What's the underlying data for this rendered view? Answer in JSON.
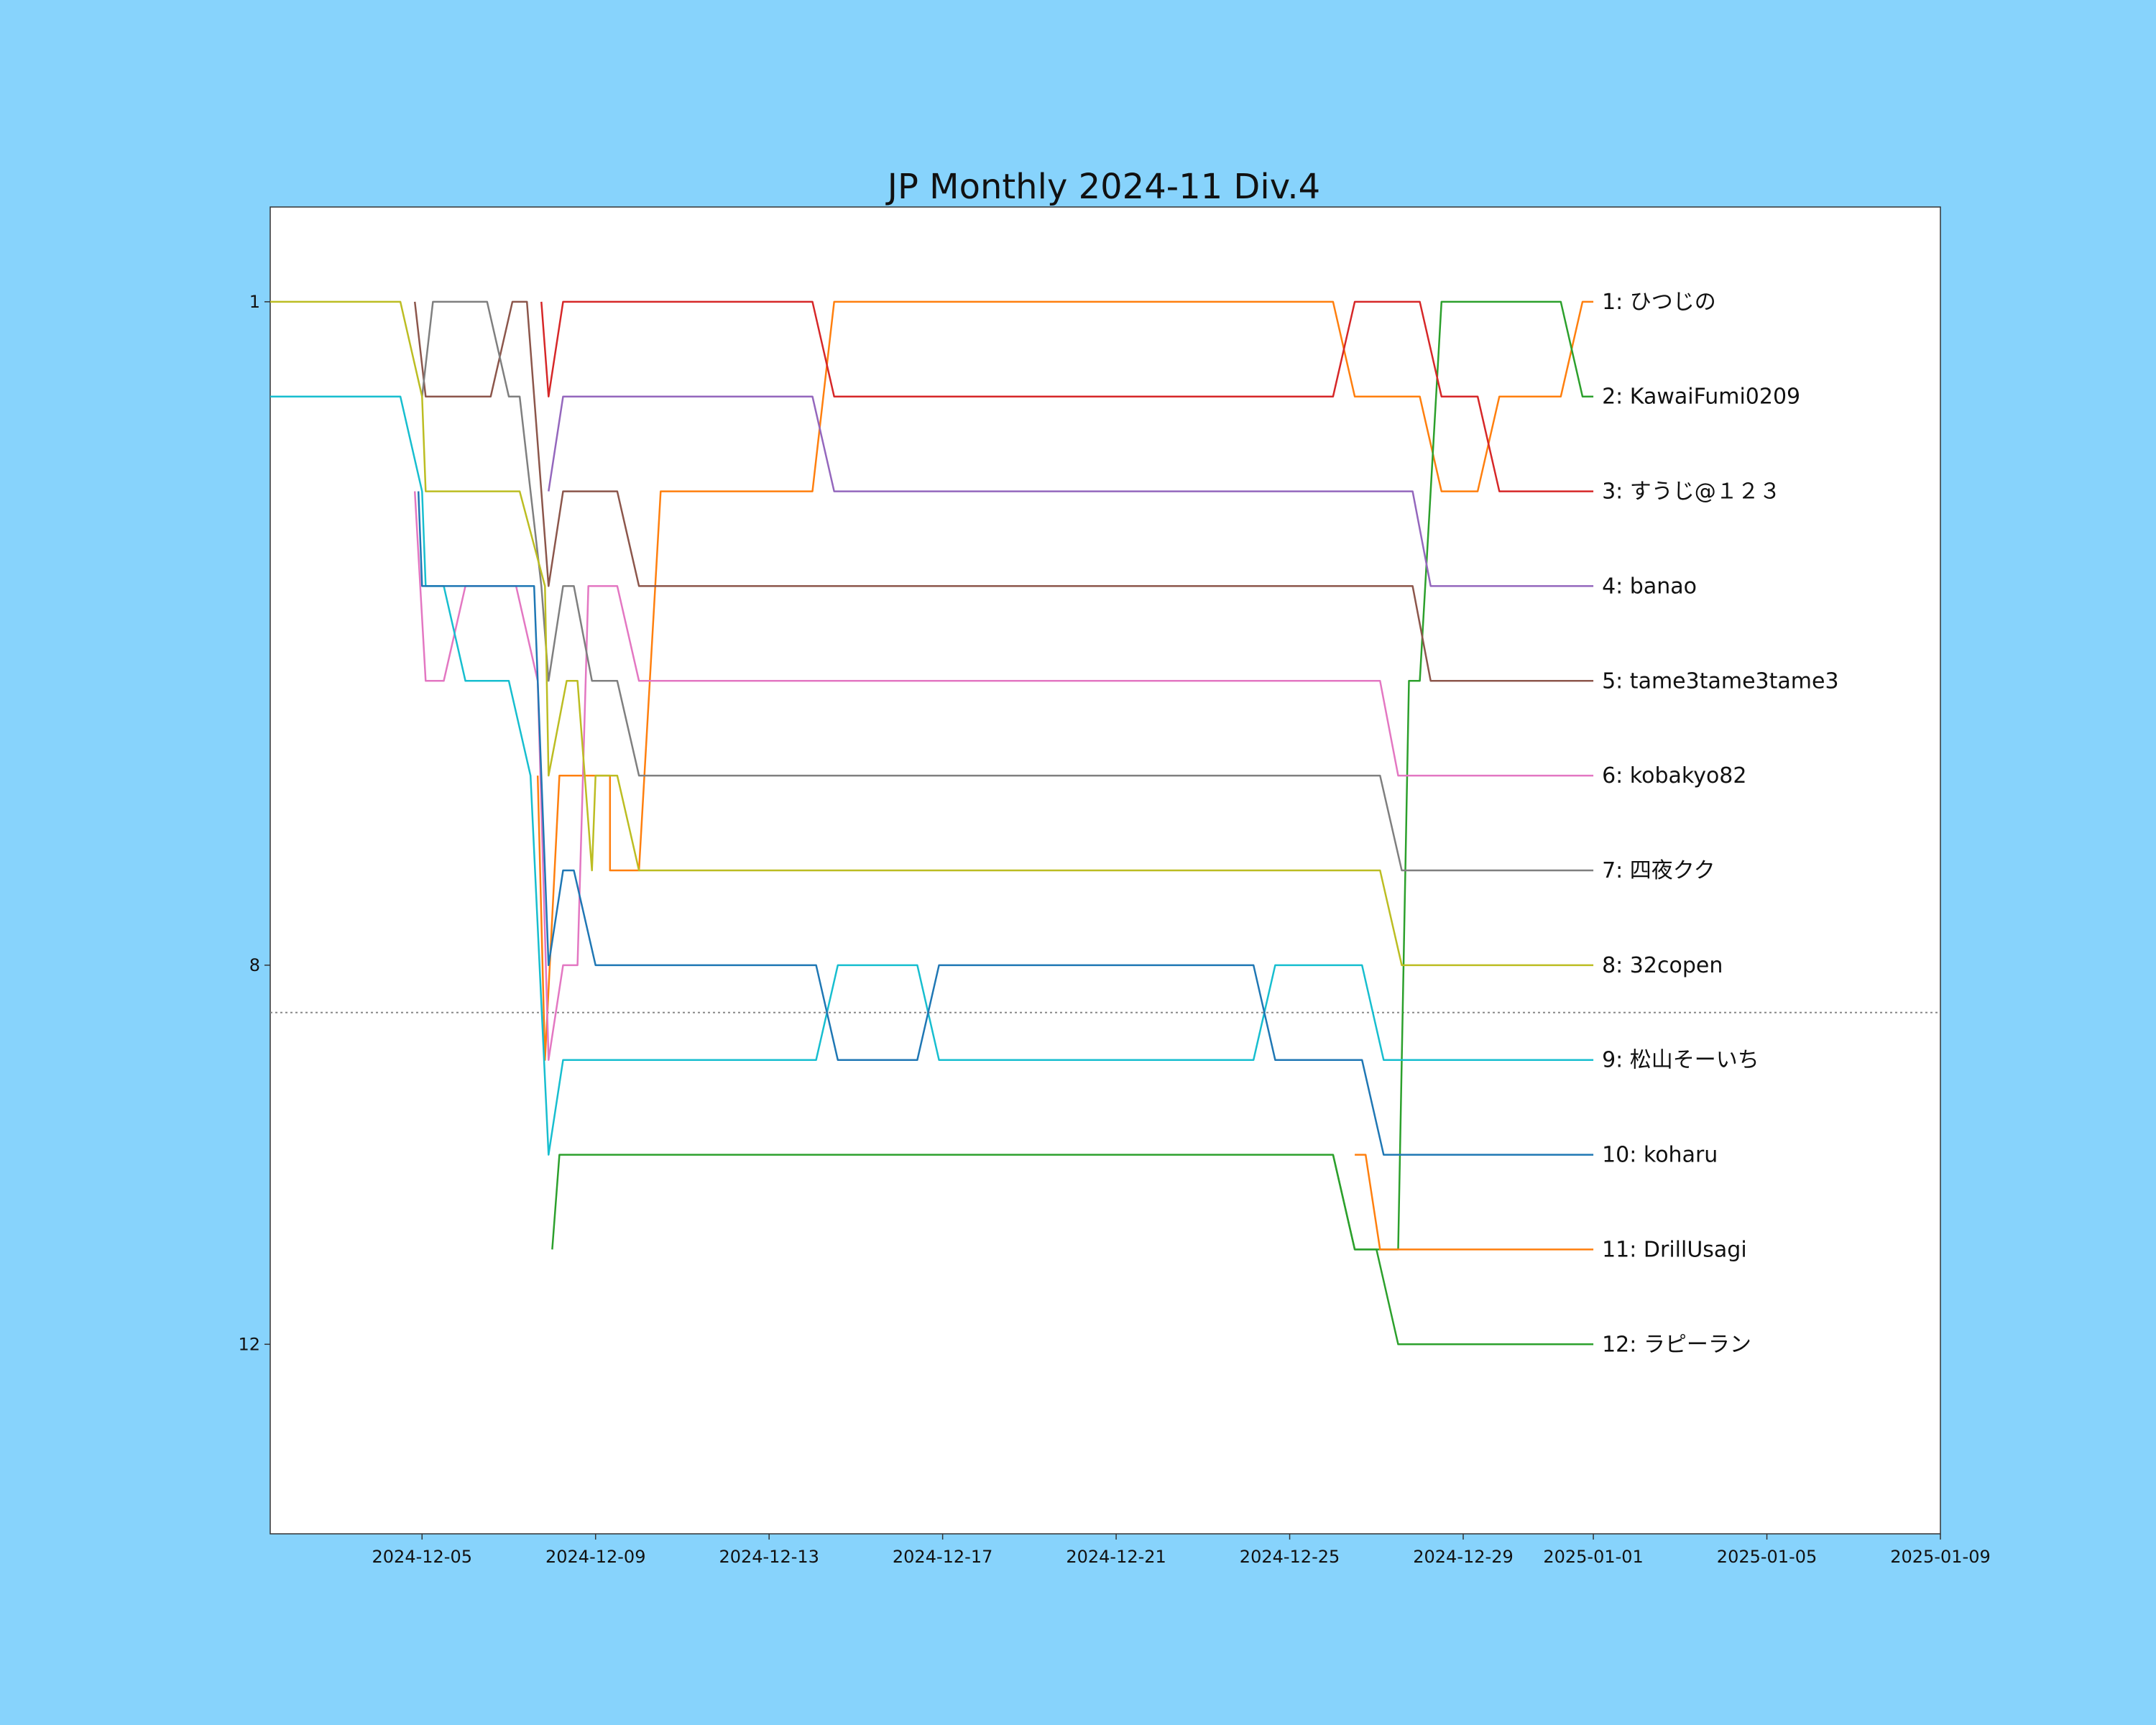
{
  "chart_data": {
    "type": "line",
    "title": "JP Monthly 2024-11 Div.4",
    "xlabel": "",
    "ylabel": "",
    "x_axis": {
      "type": "date",
      "range": [
        "2024-12-01T12:00",
        "2025-01-09T00:00"
      ],
      "tick_labels": [
        "2024-12-05",
        "2024-12-09",
        "2024-12-13",
        "2024-12-17",
        "2024-12-21",
        "2024-12-25",
        "2024-12-29",
        "2025-01-01",
        "2025-01-05",
        "2025-01-09"
      ]
    },
    "y_axis": {
      "range": [
        14,
        0
      ],
      "inverted": true,
      "tick_labels": [
        "1",
        "8",
        "12"
      ]
    },
    "threshold_line": {
      "value": 8.5,
      "style": "dotted",
      "color": "#888888"
    },
    "grid": false,
    "legend": "none",
    "series": [
      {
        "name": "1: ひつじの",
        "color": "#ff7f0e",
        "points": [
          [
            "2024-12-07T16:00",
            6
          ],
          [
            "2024-12-07T20:00",
            9
          ],
          [
            "2024-12-08T04:00",
            6
          ],
          [
            "2024-12-09T08:00",
            6
          ],
          [
            "2024-12-09T08:00",
            7
          ],
          [
            "2024-12-10T00:00",
            7
          ],
          [
            "2024-12-10T12:00",
            3
          ],
          [
            "2024-12-14T00:00",
            3
          ],
          [
            "2024-12-14T12:00",
            1
          ],
          [
            "2024-12-26T00:00",
            1
          ],
          [
            "2024-12-26T12:00",
            2
          ],
          [
            "2024-12-28T00:00",
            2
          ],
          [
            "2024-12-28T12:00",
            3
          ],
          [
            "2024-12-29T08:00",
            3
          ],
          [
            "2024-12-29T20:00",
            2
          ],
          [
            "2024-12-31T06:00",
            2
          ],
          [
            "2024-12-31T18:00",
            1
          ],
          [
            "2025-01-01T00:00",
            1
          ]
        ]
      },
      {
        "name": "2: KawaiFumi0209",
        "color": "#2ca02c",
        "points": [
          [
            "2024-12-08T00:00",
            11
          ],
          [
            "2024-12-08T04:00",
            10
          ],
          [
            "2024-12-26T00:00",
            10
          ],
          [
            "2024-12-26T12:00",
            11
          ],
          [
            "2024-12-27T00:00",
            11
          ],
          [
            "2024-12-27T12:00",
            11
          ],
          [
            "2024-12-27T18:00",
            5
          ],
          [
            "2024-12-28T00:00",
            5
          ],
          [
            "2024-12-28T12:00",
            1
          ],
          [
            "2024-12-31T06:00",
            1
          ],
          [
            "2024-12-31T18:00",
            2
          ],
          [
            "2025-01-01T00:00",
            2
          ]
        ]
      },
      {
        "name": "3: すうじ@１２３",
        "color": "#d62728",
        "points": [
          [
            "2024-12-07T18:00",
            1
          ],
          [
            "2024-12-07T22:00",
            2
          ],
          [
            "2024-12-08T06:00",
            1
          ],
          [
            "2024-12-14T00:00",
            1
          ],
          [
            "2024-12-14T12:00",
            2
          ],
          [
            "2024-12-26T00:00",
            2
          ],
          [
            "2024-12-26T12:00",
            1
          ],
          [
            "2024-12-28T00:00",
            1
          ],
          [
            "2024-12-28T12:00",
            2
          ],
          [
            "2024-12-29T08:00",
            2
          ],
          [
            "2024-12-29T20:00",
            3
          ],
          [
            "2025-01-01T00:00",
            3
          ]
        ]
      },
      {
        "name": "4: banao",
        "color": "#9467bd",
        "points": [
          [
            "2024-12-07T22:00",
            3
          ],
          [
            "2024-12-08T06:00",
            2
          ],
          [
            "2024-12-14T00:00",
            2
          ],
          [
            "2024-12-14T12:00",
            3
          ],
          [
            "2024-12-27T20:00",
            3
          ],
          [
            "2024-12-28T06:00",
            4
          ],
          [
            "2025-01-01T00:00",
            4
          ]
        ]
      },
      {
        "name": "5: tame3tame3tame3",
        "color": "#8c564b",
        "points": [
          [
            "2024-12-04T20:00",
            1
          ],
          [
            "2024-12-05T02:00",
            2
          ],
          [
            "2024-12-06T14:00",
            2
          ],
          [
            "2024-12-07T02:00",
            1
          ],
          [
            "2024-12-07T10:00",
            1
          ],
          [
            "2024-12-07T22:00",
            4
          ],
          [
            "2024-12-08T06:00",
            3
          ],
          [
            "2024-12-09T12:00",
            3
          ],
          [
            "2024-12-10T00:00",
            4
          ],
          [
            "2024-12-27T20:00",
            4
          ],
          [
            "2024-12-28T06:00",
            5
          ],
          [
            "2025-01-01T00:00",
            5
          ]
        ]
      },
      {
        "name": "6: kobakyo82",
        "color": "#e377c2",
        "points": [
          [
            "2024-12-04T20:00",
            3
          ],
          [
            "2024-12-05T02:00",
            5
          ],
          [
            "2024-12-05T12:00",
            5
          ],
          [
            "2024-12-06T00:00",
            4
          ],
          [
            "2024-12-07T04:00",
            4
          ],
          [
            "2024-12-07T16:00",
            5
          ],
          [
            "2024-12-07T22:00",
            9
          ],
          [
            "2024-12-08T06:00",
            8
          ],
          [
            "2024-12-08T14:00",
            8
          ],
          [
            "2024-12-08T20:00",
            4
          ],
          [
            "2024-12-09T12:00",
            4
          ],
          [
            "2024-12-10T00:00",
            5
          ],
          [
            "2024-12-27T02:00",
            5
          ],
          [
            "2024-12-27T12:00",
            6
          ],
          [
            "2025-01-01T00:00",
            6
          ]
        ]
      },
      {
        "name": "7: 四夜クク",
        "color": "#7f7f7f",
        "points": [
          [
            "2024-12-05T00:00",
            2
          ],
          [
            "2024-12-05T06:00",
            1
          ],
          [
            "2024-12-06T12:00",
            1
          ],
          [
            "2024-12-07T00:00",
            2
          ],
          [
            "2024-12-07T06:00",
            2
          ],
          [
            "2024-12-07T18:00",
            4
          ],
          [
            "2024-12-07T22:00",
            5
          ],
          [
            "2024-12-08T06:00",
            4
          ],
          [
            "2024-12-08T12:00",
            4
          ],
          [
            "2024-12-08T22:00",
            5
          ],
          [
            "2024-12-09T12:00",
            5
          ],
          [
            "2024-12-10T00:00",
            6
          ],
          [
            "2024-12-27T02:00",
            6
          ],
          [
            "2024-12-27T14:00",
            7
          ],
          [
            "2025-01-01T00:00",
            7
          ]
        ]
      },
      {
        "name": "8: 32copen",
        "color": "#bcbd22",
        "points": [
          [
            "2024-12-01T12:00",
            1
          ],
          [
            "2024-12-04T12:00",
            1
          ],
          [
            "2024-12-05T00:00",
            2
          ],
          [
            "2024-12-05T02:00",
            3
          ],
          [
            "2024-12-07T06:00",
            3
          ],
          [
            "2024-12-07T20:00",
            4
          ],
          [
            "2024-12-07T22:00",
            6
          ],
          [
            "2024-12-08T08:00",
            5
          ],
          [
            "2024-12-08T14:00",
            5
          ],
          [
            "2024-12-08T22:00",
            7
          ],
          [
            "2024-12-09T00:00",
            6
          ],
          [
            "2024-12-09T12:00",
            6
          ],
          [
            "2024-12-10T00:00",
            7
          ],
          [
            "2024-12-27T02:00",
            7
          ],
          [
            "2024-12-27T14:00",
            8
          ],
          [
            "2025-01-01T00:00",
            8
          ]
        ]
      },
      {
        "name": "9: 松山そーいち",
        "color": "#17becf",
        "points": [
          [
            "2024-12-01T12:00",
            2
          ],
          [
            "2024-12-04T12:00",
            2
          ],
          [
            "2024-12-05T00:00",
            3
          ],
          [
            "2024-12-05T02:00",
            4
          ],
          [
            "2024-12-05T12:00",
            4
          ],
          [
            "2024-12-06T00:00",
            5
          ],
          [
            "2024-12-07T00:00",
            5
          ],
          [
            "2024-12-07T12:00",
            6
          ],
          [
            "2024-12-07T22:00",
            10
          ],
          [
            "2024-12-08T06:00",
            9
          ],
          [
            "2024-12-14T02:00",
            9
          ],
          [
            "2024-12-14T14:00",
            8
          ],
          [
            "2024-12-16T10:00",
            8
          ],
          [
            "2024-12-16T22:00",
            9
          ],
          [
            "2024-12-24T04:00",
            9
          ],
          [
            "2024-12-24T16:00",
            8
          ],
          [
            "2024-12-26T16:00",
            8
          ],
          [
            "2024-12-27T04:00",
            9
          ],
          [
            "2025-01-01T00:00",
            9
          ]
        ]
      },
      {
        "name": "10: koharu",
        "color": "#1f77b4",
        "points": [
          [
            "2024-12-04T22:00",
            3
          ],
          [
            "2024-12-05T00:00",
            4
          ],
          [
            "2024-12-07T14:00",
            4
          ],
          [
            "2024-12-07T22:00",
            8
          ],
          [
            "2024-12-08T06:00",
            7
          ],
          [
            "2024-12-08T12:00",
            7
          ],
          [
            "2024-12-09T00:00",
            8
          ],
          [
            "2024-12-14T02:00",
            8
          ],
          [
            "2024-12-14T14:00",
            9
          ],
          [
            "2024-12-16T10:00",
            9
          ],
          [
            "2024-12-16T22:00",
            8
          ],
          [
            "2024-12-24T04:00",
            8
          ],
          [
            "2024-12-24T16:00",
            9
          ],
          [
            "2024-12-26T16:00",
            9
          ],
          [
            "2024-12-27T04:00",
            10
          ],
          [
            "2025-01-01T00:00",
            10
          ]
        ]
      },
      {
        "name": "11: DrillUsagi",
        "color": "#ff7f0e",
        "points": [
          [
            "2024-12-26T12:00",
            10
          ],
          [
            "2024-12-26T18:00",
            10
          ],
          [
            "2024-12-27T02:00",
            11
          ],
          [
            "2025-01-01T00:00",
            11
          ]
        ]
      },
      {
        "name": "12: ラピーラン",
        "color": "#2ca02c",
        "points": [
          [
            "2024-12-26T00:00",
            10
          ],
          [
            "2024-12-26T12:00",
            11
          ],
          [
            "2024-12-27T00:00",
            11
          ],
          [
            "2024-12-27T12:00",
            12
          ],
          [
            "2025-01-01T00:00",
            12
          ]
        ]
      }
    ]
  }
}
